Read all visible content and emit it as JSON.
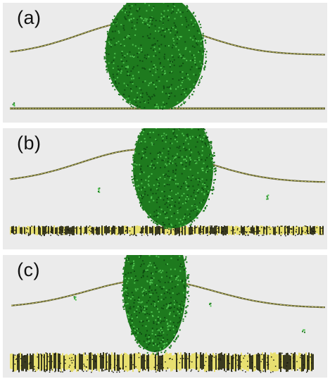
{
  "panels": [
    {
      "id": "a",
      "label": "(a)"
    },
    {
      "id": "b",
      "label": "(b)"
    },
    {
      "id": "c",
      "label": "(c)"
    }
  ],
  "colors": {
    "panel_background": "#ebebeb",
    "droplet_green": "#1e7a1e",
    "droplet_highlight": "#4fc24f",
    "membrane_yellow": "#e8e070",
    "membrane_dark": "#3a3a20",
    "wall_line": "#6a6a3a"
  }
}
